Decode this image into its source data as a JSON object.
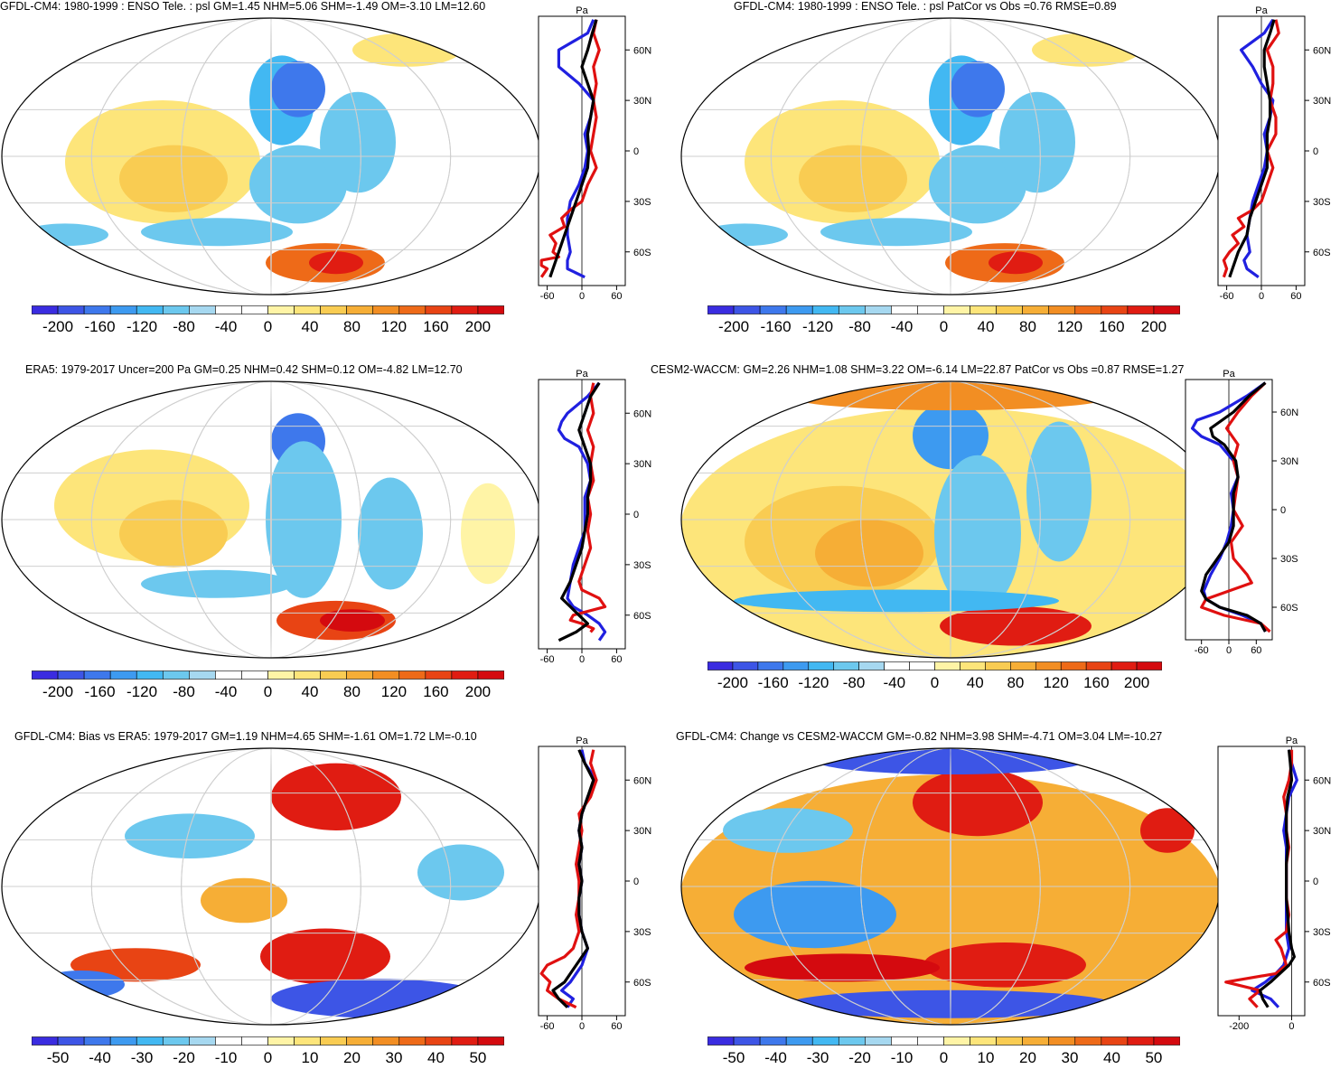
{
  "colorbar_colors": [
    "#3a2ce0",
    "#3d55e6",
    "#3e78ec",
    "#3d9af0",
    "#42b8f2",
    "#6cc8ee",
    "#a6d8f0",
    "#ffffff",
    "#ffffff",
    "#fff4a6",
    "#fde57a",
    "#f9cc52",
    "#f6ae36",
    "#f28e23",
    "#ee6a18",
    "#e84414",
    "#e01c12",
    "#d40a0f"
  ],
  "panels": [
    {
      "id": "gfdl-cm4-enso",
      "title": "GFDL-CM4: 1980-1999 : ENSO Tele. : psl GM=1.45 NHM=5.06 SHM=-1.49 OM=-3.10 LM=12.60",
      "colorbar_ticks": [
        "-200",
        "-160",
        "-120",
        "-80",
        "-40",
        "0",
        "40",
        "80",
        "120",
        "160",
        "200"
      ],
      "profile": {
        "unit": "Pa",
        "lat_labels": [
          "60N",
          "30N",
          "0",
          "30S",
          "60S"
        ],
        "x_ticks": [
          "-60",
          "0",
          "60"
        ],
        "xlim": [
          -75,
          75
        ],
        "series": [
          {
            "color": "#2020e0",
            "lat": [
              78,
              70,
              60,
              50,
              40,
              30,
              20,
              10,
              0,
              -10,
              -20,
              -30,
              -40,
              -50,
              -60,
              -65,
              -70,
              -75
            ],
            "value": [
              20,
              10,
              -40,
              -40,
              -5,
              20,
              15,
              5,
              10,
              5,
              -5,
              -20,
              -25,
              -25,
              -20,
              -25,
              -25,
              5
            ]
          },
          {
            "color": "#e01010",
            "lat": [
              78,
              70,
              60,
              50,
              40,
              30,
              20,
              10,
              0,
              -10,
              -20,
              -30,
              -35,
              -40,
              -45,
              -50,
              -55,
              -60,
              -63,
              -65,
              -68,
              -70,
              -75
            ],
            "value": [
              25,
              20,
              30,
              20,
              25,
              20,
              25,
              20,
              15,
              25,
              10,
              0,
              -20,
              -35,
              -30,
              -55,
              -45,
              -50,
              -40,
              -70,
              -70,
              -60,
              -70
            ]
          },
          {
            "color": "#000000",
            "lat": [
              78,
              70,
              60,
              50,
              40,
              30,
              20,
              10,
              0,
              -10,
              -20,
              -30,
              -40,
              -50,
              -60,
              -65,
              -70,
              -75
            ],
            "value": [
              25,
              18,
              10,
              0,
              10,
              20,
              15,
              10,
              12,
              10,
              0,
              -10,
              -20,
              -30,
              -40,
              -45,
              -50,
              -55
            ]
          }
        ]
      }
    },
    {
      "id": "gfdl-cm4-patcor",
      "title": "GFDL-CM4: 1980-1999 : ENSO Tele. : psl PatCor vs Obs =0.76 RMSE=0.89",
      "colorbar_ticks": [
        "-200",
        "-160",
        "-120",
        "-80",
        "-40",
        "0",
        "40",
        "80",
        "120",
        "160",
        "200"
      ],
      "profile": {
        "unit": "Pa",
        "lat_labels": [
          "60N",
          "30N",
          "0",
          "30S",
          "60S"
        ],
        "x_ticks": [
          "-60",
          "0",
          "60"
        ],
        "xlim": [
          -75,
          75
        ],
        "series": [
          {
            "color": "#2020e0",
            "lat": [
              78,
              70,
              60,
              50,
              40,
              30,
              20,
              10,
              0,
              -10,
              -20,
              -30,
              -40,
              -50,
              -60,
              -65,
              -70,
              -75
            ],
            "value": [
              20,
              5,
              -35,
              -15,
              0,
              20,
              15,
              5,
              10,
              5,
              -5,
              -15,
              -20,
              -25,
              -20,
              -30,
              -25,
              -5
            ]
          },
          {
            "color": "#e01010",
            "lat": [
              78,
              70,
              60,
              50,
              40,
              30,
              20,
              10,
              0,
              -10,
              -20,
              -30,
              -35,
              -40,
              -45,
              -50,
              -55,
              -60,
              -65,
              -70,
              -75
            ],
            "value": [
              25,
              30,
              10,
              20,
              20,
              15,
              25,
              25,
              10,
              20,
              10,
              0,
              -15,
              -40,
              -30,
              -50,
              -40,
              -55,
              -65,
              -60,
              -65
            ]
          },
          {
            "color": "#000000",
            "lat": [
              78,
              70,
              60,
              50,
              40,
              30,
              20,
              10,
              0,
              -10,
              -20,
              -30,
              -40,
              -50,
              -60,
              -65,
              -70,
              -75
            ],
            "value": [
              22,
              15,
              5,
              5,
              10,
              15,
              15,
              10,
              10,
              10,
              0,
              -10,
              -20,
              -25,
              -40,
              -45,
              -50,
              -55
            ]
          }
        ]
      }
    },
    {
      "id": "era5",
      "title": "ERA5: 1979-2017 Uncer=200 Pa GM=0.25 NHM=0.42 SHM=0.12 OM=-4.82 LM=12.70",
      "colorbar_ticks": [
        "-200",
        "-160",
        "-120",
        "-80",
        "-40",
        "0",
        "40",
        "80",
        "120",
        "160",
        "200"
      ],
      "profile": {
        "unit": "Pa",
        "lat_labels": [
          "60N",
          "30N",
          "0",
          "30S",
          "60S"
        ],
        "x_ticks": [
          "-60",
          "0",
          "60"
        ],
        "xlim": [
          -75,
          75
        ],
        "series": [
          {
            "color": "#2020e0",
            "lat": [
              78,
              70,
              60,
              55,
              50,
              45,
              40,
              30,
              20,
              10,
              0,
              -10,
              -20,
              -30,
              -40,
              -50,
              -55,
              -60,
              -65,
              -70,
              -75
            ],
            "value": [
              30,
              10,
              -25,
              -35,
              -40,
              -30,
              -5,
              10,
              15,
              5,
              5,
              5,
              -5,
              -15,
              -20,
              -25,
              -15,
              10,
              30,
              40,
              30
            ]
          },
          {
            "color": "#e01010",
            "lat": [
              78,
              70,
              60,
              50,
              40,
              30,
              20,
              10,
              0,
              -10,
              -20,
              -30,
              -40,
              -45,
              -50,
              -55,
              -60,
              -63,
              -65,
              -68,
              -70
            ],
            "value": [
              20,
              15,
              20,
              10,
              20,
              15,
              20,
              10,
              15,
              10,
              15,
              5,
              -5,
              0,
              30,
              40,
              -15,
              -20,
              0,
              20,
              15
            ]
          },
          {
            "color": "#000000",
            "lat": [
              78,
              70,
              60,
              50,
              40,
              30,
              20,
              10,
              0,
              -10,
              -20,
              -30,
              -40,
              -50,
              -55,
              -60,
              -65,
              -70,
              -75
            ],
            "value": [
              30,
              15,
              5,
              -5,
              5,
              15,
              15,
              10,
              10,
              5,
              0,
              -10,
              -20,
              -35,
              -20,
              -5,
              10,
              -10,
              -40
            ]
          }
        ]
      }
    },
    {
      "id": "cesm2-waccm",
      "title": "CESM2-WACCM: GM=2.26 NHM=1.08 SHM=3.22 OM=-6.14 LM=22.87 PatCor vs Obs =0.87 RMSE=1.27",
      "colorbar_ticks": [
        "-200",
        "-160",
        "-120",
        "-80",
        "-40",
        "0",
        "40",
        "80",
        "120",
        "160",
        "200"
      ],
      "profile": {
        "unit": "Pa",
        "lat_labels": [
          "60N",
          "30N",
          "0",
          "30S",
          "60S"
        ],
        "x_ticks": [
          "-60",
          "0",
          "60"
        ],
        "xlim": [
          -95,
          95
        ],
        "series": [
          {
            "color": "#2020e0",
            "lat": [
              78,
              70,
              60,
              55,
              50,
              45,
              40,
              30,
              20,
              10,
              0,
              -10,
              -20,
              -30,
              -40,
              -50,
              -55,
              -60,
              -65,
              -70,
              -75
            ],
            "value": [
              80,
              40,
              -20,
              -70,
              -80,
              -60,
              -20,
              10,
              20,
              5,
              10,
              5,
              -5,
              -20,
              -40,
              -55,
              -50,
              -20,
              30,
              70,
              80
            ]
          },
          {
            "color": "#e01010",
            "lat": [
              78,
              70,
              60,
              50,
              40,
              30,
              20,
              10,
              0,
              -10,
              -20,
              -30,
              -40,
              -45,
              -50,
              -55,
              -60,
              -65,
              -70,
              -75
            ],
            "value": [
              80,
              50,
              20,
              -5,
              20,
              10,
              20,
              15,
              10,
              30,
              5,
              10,
              40,
              50,
              0,
              -50,
              -60,
              -10,
              70,
              90
            ]
          },
          {
            "color": "#000000",
            "lat": [
              78,
              70,
              60,
              50,
              45,
              40,
              30,
              20,
              10,
              0,
              -10,
              -20,
              -30,
              -40,
              -50,
              -55,
              -60,
              -65,
              -70,
              -75
            ],
            "value": [
              80,
              45,
              10,
              -40,
              -35,
              -10,
              15,
              20,
              10,
              10,
              10,
              0,
              -25,
              -50,
              -60,
              -50,
              -20,
              40,
              70,
              80
            ]
          }
        ]
      }
    },
    {
      "id": "gfdl-cm4-bias",
      "title": "GFDL-CM4: Bias vs ERA5: 1979-2017 GM=1.19 NHM=4.65 SHM=-1.61 OM=1.72 LM=-0.10",
      "colorbar_ticks": [
        "-50",
        "-40",
        "-30",
        "-20",
        "-10",
        "0",
        "10",
        "20",
        "30",
        "40",
        "50"
      ],
      "profile": {
        "unit": "Pa",
        "lat_labels": [
          "60N",
          "30N",
          "0",
          "30S",
          "60S"
        ],
        "x_ticks": [
          "-60",
          "0",
          "60"
        ],
        "xlim": [
          -75,
          75
        ],
        "series": [
          {
            "color": "#2020e0",
            "lat": [
              78,
              70,
              60,
              50,
              40,
              30,
              20,
              10,
              0,
              -10,
              -20,
              -30,
              -40,
              -50,
              -60,
              -65,
              -70,
              -75
            ],
            "value": [
              0,
              5,
              25,
              10,
              0,
              -5,
              0,
              -5,
              0,
              -5,
              -5,
              0,
              10,
              0,
              -20,
              -35,
              -15,
              -25
            ]
          },
          {
            "color": "#e01010",
            "lat": [
              78,
              70,
              60,
              50,
              40,
              30,
              20,
              10,
              0,
              -10,
              -20,
              -30,
              -40,
              -45,
              -50,
              -55,
              -60,
              -65,
              -70,
              -75
            ],
            "value": [
              20,
              15,
              25,
              15,
              -5,
              0,
              -5,
              -10,
              -5,
              -5,
              -10,
              -5,
              -15,
              -30,
              -60,
              -70,
              -55,
              -60,
              -40,
              -10
            ]
          },
          {
            "color": "#000000",
            "lat": [
              78,
              70,
              60,
              50,
              40,
              30,
              20,
              10,
              0,
              -10,
              -20,
              -30,
              -40,
              -50,
              -60,
              -65,
              -70,
              -75
            ],
            "value": [
              -5,
              5,
              20,
              10,
              0,
              -5,
              0,
              -5,
              0,
              -5,
              -5,
              0,
              10,
              -10,
              -30,
              -50,
              -40,
              -25
            ]
          }
        ]
      }
    },
    {
      "id": "gfdl-cm4-change",
      "title": "GFDL-CM4: Change vs CESM2-WACCM GM=-0.82 NHM=3.98 SHM=-4.71 OM=3.04 LM=-10.27",
      "colorbar_ticks": [
        "-50",
        "-40",
        "-30",
        "-20",
        "-10",
        "0",
        "10",
        "20",
        "30",
        "40",
        "50"
      ],
      "profile": {
        "unit": "Pa",
        "lat_labels": [
          "60N",
          "30N",
          "0",
          "30S",
          "60S"
        ],
        "x_ticks": [
          "-200",
          "0"
        ],
        "xlim": [
          -280,
          50
        ],
        "series": [
          {
            "color": "#2020e0",
            "lat": [
              78,
              70,
              60,
              50,
              40,
              30,
              20,
              10,
              0,
              -10,
              -20,
              -30,
              -40,
              -50,
              -55,
              -60,
              -65,
              -70,
              -75
            ],
            "value": [
              -10,
              0,
              20,
              -10,
              -20,
              -30,
              -20,
              -20,
              -20,
              -20,
              -20,
              -20,
              -10,
              -30,
              -60,
              -100,
              -150,
              -80,
              -50
            ]
          },
          {
            "color": "#e01010",
            "lat": [
              78,
              70,
              60,
              50,
              40,
              30,
              20,
              10,
              0,
              -10,
              -20,
              -30,
              -35,
              -40,
              -45,
              -50,
              -55,
              -60,
              -65,
              -70,
              -75
            ],
            "value": [
              0,
              0,
              -10,
              -30,
              -20,
              -20,
              -10,
              -20,
              -20,
              -20,
              -10,
              -20,
              -60,
              -40,
              -30,
              -20,
              -60,
              -250,
              -120,
              -160,
              -130
            ]
          },
          {
            "color": "#000000",
            "lat": [
              78,
              70,
              60,
              50,
              40,
              30,
              20,
              10,
              0,
              -10,
              -20,
              -30,
              -40,
              -45,
              -50,
              -60,
              -65,
              -70,
              -75
            ],
            "value": [
              -10,
              -5,
              0,
              -15,
              -20,
              -20,
              -15,
              -20,
              -20,
              -20,
              -15,
              -10,
              0,
              10,
              -10,
              -80,
              -120,
              -110,
              -90
            ]
          }
        ]
      }
    }
  ]
}
